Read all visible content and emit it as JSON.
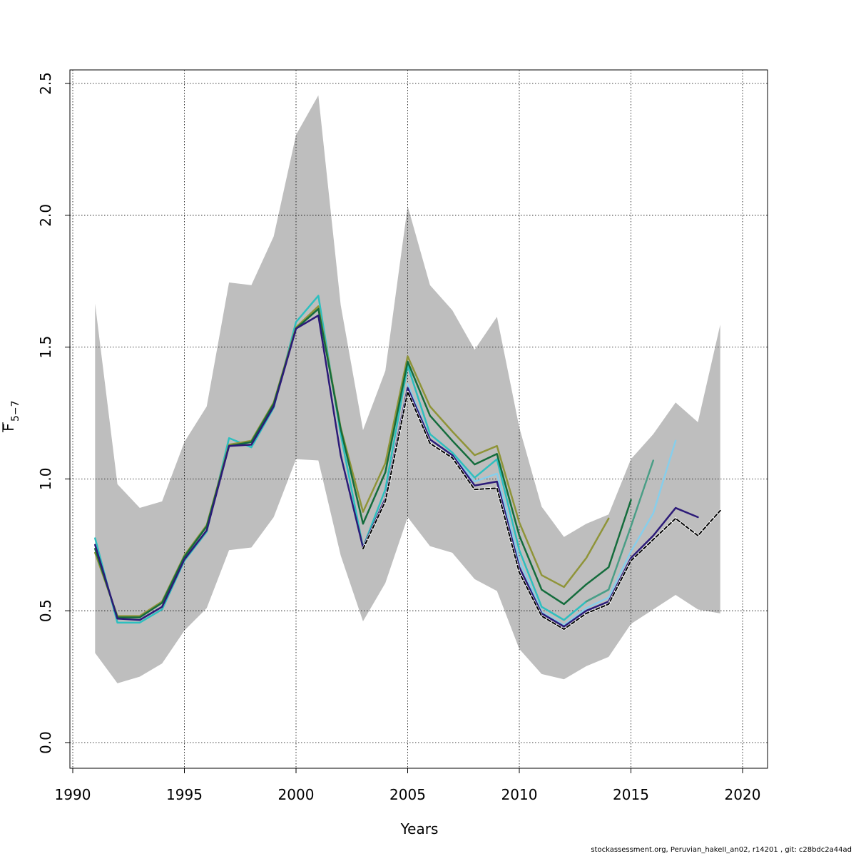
{
  "chart_data": {
    "type": "line",
    "xlabel": "Years",
    "ylabel_main": "F",
    "ylabel_sub": "5−7",
    "xlim": [
      1990,
      2020
    ],
    "ylim": [
      0,
      2.5
    ],
    "x_ticks": [
      1990,
      1995,
      2000,
      2005,
      2010,
      2015,
      2020
    ],
    "y_ticks": [
      0.0,
      0.5,
      1.0,
      1.5,
      2.0,
      2.5
    ],
    "y_tick_labels": [
      "0.0",
      "0.5",
      "1.0",
      "1.5",
      "2.0",
      "2.5"
    ],
    "grid": true,
    "confidence_band": {
      "color": "#bebebe",
      "x": [
        1991,
        1992,
        1993,
        1994,
        1995,
        1996,
        1997,
        1998,
        1999,
        2000,
        2001,
        2002,
        2003,
        2004,
        2005,
        2006,
        2007,
        2008,
        2009,
        2010,
        2011,
        2012,
        2013,
        2014,
        2015,
        2016,
        2017,
        2018,
        2019
      ],
      "lower": [
        0.34,
        0.225,
        0.25,
        0.3,
        0.425,
        0.51,
        0.73,
        0.74,
        0.855,
        1.075,
        1.07,
        0.71,
        0.46,
        0.605,
        0.855,
        0.745,
        0.72,
        0.62,
        0.575,
        0.355,
        0.26,
        0.24,
        0.29,
        0.325,
        0.45,
        0.505,
        0.56,
        0.505,
        0.49
      ],
      "upper": [
        1.665,
        0.98,
        0.89,
        0.915,
        1.14,
        1.275,
        1.745,
        1.735,
        1.92,
        2.305,
        2.455,
        1.66,
        1.185,
        1.41,
        2.035,
        1.735,
        1.64,
        1.49,
        1.615,
        1.195,
        0.895,
        0.78,
        0.83,
        0.865,
        1.075,
        1.17,
        1.29,
        1.215,
        1.585
      ]
    },
    "series": [
      {
        "color": "#2dbfbf",
        "width": 2.5,
        "dash": false,
        "x": [
          1991,
          1992,
          1993,
          1994,
          1995,
          1996,
          1997,
          1998,
          1999,
          2000,
          2001,
          2002,
          2003,
          2004,
          2005,
          2006,
          2007,
          2008,
          2009,
          2010,
          2011,
          2012,
          2013,
          2014
        ],
        "y": [
          0.775,
          0.455,
          0.455,
          0.505,
          0.69,
          0.8,
          1.155,
          1.12,
          1.27,
          1.595,
          1.695,
          1.17,
          0.74,
          0.96,
          1.43,
          1.17,
          1.1,
          1.005,
          1.075,
          0.73,
          0.515,
          0.465,
          0.535,
          0.58
        ]
      },
      {
        "color": "#8f9438",
        "width": 2.5,
        "dash": false,
        "x": [
          1991,
          1992,
          1993,
          1994,
          1995,
          1996,
          1997,
          1998,
          1999,
          2000,
          2001,
          2002,
          2003,
          2004,
          2005,
          2006,
          2007,
          2008,
          2009,
          2010,
          2011,
          2012,
          2013,
          2014
        ],
        "y": [
          0.72,
          0.48,
          0.48,
          0.535,
          0.71,
          0.825,
          1.13,
          1.145,
          1.29,
          1.575,
          1.655,
          1.195,
          0.875,
          1.06,
          1.465,
          1.275,
          1.18,
          1.09,
          1.125,
          0.835,
          0.635,
          0.59,
          0.7,
          0.85
        ]
      },
      {
        "color": "#4a9e86",
        "width": 2.5,
        "dash": false,
        "x": [
          2013,
          2014,
          2015,
          2016
        ],
        "y": [
          0.535,
          0.58,
          0.82,
          1.07
        ]
      },
      {
        "color": "#146c3c",
        "width": 2.5,
        "dash": false,
        "x": [
          1991,
          1992,
          1993,
          1994,
          1995,
          1996,
          1997,
          1998,
          1999,
          2000,
          2001,
          2002,
          2003,
          2004,
          2005,
          2006,
          2007,
          2008,
          2009,
          2010,
          2011,
          2012,
          2013,
          2014,
          2015
        ],
        "y": [
          0.735,
          0.475,
          0.475,
          0.53,
          0.705,
          0.82,
          1.125,
          1.14,
          1.285,
          1.57,
          1.645,
          1.19,
          0.83,
          1.025,
          1.445,
          1.24,
          1.145,
          1.055,
          1.095,
          0.785,
          0.58,
          0.525,
          0.6,
          0.665,
          0.92
        ]
      },
      {
        "color": "#87ceeb",
        "width": 2.5,
        "dash": false,
        "x": [
          2005,
          2006,
          2007,
          2008,
          2009,
          2010,
          2011,
          2012,
          2013,
          2014,
          2015,
          2016,
          2017
        ],
        "y": [
          1.36,
          1.15,
          1.09,
          0.99,
          1.02,
          0.69,
          0.495,
          0.445,
          0.51,
          0.55,
          0.725,
          0.87,
          1.145
        ]
      },
      {
        "color": "#2c1a78",
        "width": 2.5,
        "dash": false,
        "x": [
          1991,
          1992,
          1993,
          1994,
          1995,
          1996,
          1997,
          1998,
          1999,
          2000,
          2001,
          2002,
          2003,
          2004,
          2005,
          2006,
          2007,
          2008,
          2009,
          2010,
          2011,
          2012,
          2013,
          2014,
          2015,
          2016,
          2017,
          2018
        ],
        "y": [
          0.75,
          0.47,
          0.465,
          0.515,
          0.695,
          0.805,
          1.125,
          1.13,
          1.275,
          1.57,
          1.62,
          1.09,
          0.74,
          0.925,
          1.345,
          1.15,
          1.09,
          0.975,
          0.99,
          0.665,
          0.49,
          0.44,
          0.5,
          0.535,
          0.7,
          0.785,
          0.89,
          0.855
        ]
      },
      {
        "color": "#000000",
        "width": 2,
        "dash": true,
        "x": [
          2003,
          2004,
          2005,
          2006,
          2007,
          2008,
          2009,
          2010,
          2011,
          2012,
          2013,
          2014,
          2015,
          2016,
          2017,
          2018,
          2019
        ],
        "y": [
          0.735,
          0.915,
          1.33,
          1.135,
          1.08,
          0.96,
          0.965,
          0.645,
          0.48,
          0.43,
          0.49,
          0.525,
          0.69,
          0.77,
          0.85,
          0.785,
          0.88
        ]
      }
    ]
  },
  "footer": {
    "credit": "stockassessment.org, Peruvian_hakeII_an02, r14201 , git: c28bdc2a44ad"
  }
}
